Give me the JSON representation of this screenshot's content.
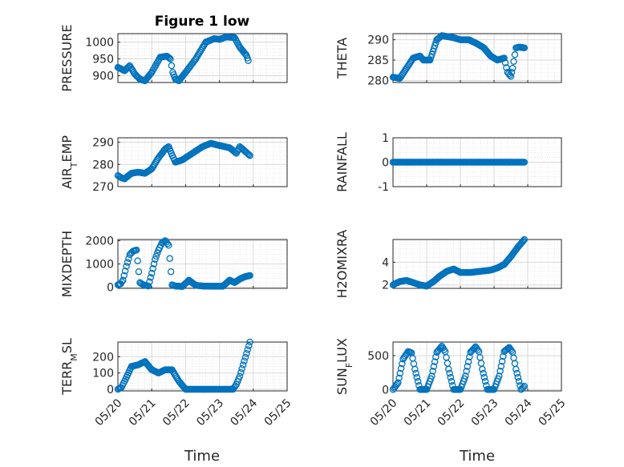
{
  "figure": {
    "title": "Figure 1 low",
    "marker_color": "#0072BD",
    "axis_color": "#262626",
    "grid_color": "#d9d9d9"
  },
  "chart_data": [
    {
      "type": "scatter",
      "ylabel": "PRESSURE",
      "ylim": [
        880,
        1025
      ],
      "yticks": [
        "900",
        "950",
        "1000"
      ],
      "ytick_values": [
        900,
        950,
        1000
      ],
      "xlim": [
        0,
        5
      ],
      "grid": true,
      "x": [
        0,
        0.2,
        0.35,
        0.5,
        0.65,
        0.8,
        1.0,
        1.25,
        1.45,
        1.55,
        1.62,
        1.7,
        1.8,
        2.0,
        2.3,
        2.6,
        2.85,
        3.0,
        3.2,
        3.45,
        3.6,
        3.8,
        3.85
      ],
      "y": [
        925,
        915,
        930,
        905,
        890,
        885,
        910,
        955,
        958,
        950,
        910,
        890,
        885,
        910,
        950,
        1000,
        1010,
        1008,
        1015,
        1013,
        985,
        960,
        945
      ]
    },
    {
      "type": "scatter",
      "ylabel": "THETA",
      "ylim": [
        279.5,
        291.5
      ],
      "yticks": [
        "280",
        "285",
        "290"
      ],
      "ytick_values": [
        280,
        285,
        290
      ],
      "xlim": [
        0,
        5
      ],
      "grid": true,
      "x": [
        0,
        0.2,
        0.4,
        0.6,
        0.8,
        0.9,
        1.1,
        1.3,
        1.45,
        1.6,
        1.8,
        2.0,
        2.25,
        2.5,
        2.7,
        2.9,
        3.1,
        3.3,
        3.4,
        3.5,
        3.55,
        3.65,
        3.75,
        3.9
      ],
      "y": [
        280.8,
        280.5,
        283,
        285.5,
        286,
        285,
        285,
        290,
        291,
        290.8,
        290.5,
        290,
        290,
        289,
        288,
        286,
        285,
        285.5,
        282,
        281,
        283,
        288,
        288.2,
        288
      ]
    },
    {
      "type": "scatter",
      "ylabel": "AIR_TEMP",
      "ylim": [
        270,
        292
      ],
      "yticks": [
        "270",
        "280",
        "290"
      ],
      "ytick_values": [
        270,
        280,
        290
      ],
      "xlim": [
        0,
        5
      ],
      "grid": true,
      "x": [
        0,
        0.1,
        0.2,
        0.4,
        0.6,
        0.8,
        1.0,
        1.2,
        1.4,
        1.5,
        1.55,
        1.7,
        1.9,
        2.2,
        2.5,
        2.75,
        3.0,
        3.3,
        3.5,
        3.6,
        3.75,
        3.9
      ],
      "y": [
        275,
        274,
        273.5,
        276,
        276.5,
        276,
        278,
        283,
        287,
        288,
        286,
        281,
        282,
        285,
        288,
        289.5,
        288.5,
        287.5,
        285,
        288,
        286,
        284
      ]
    },
    {
      "type": "scatter",
      "ylabel": "RAINFALL",
      "ylim": [
        -1,
        1
      ],
      "yticks": [
        "-1",
        "0",
        "1"
      ],
      "ytick_values": [
        -1,
        0,
        1
      ],
      "xlim": [
        0,
        5
      ],
      "grid": true,
      "x": [
        0,
        0.5,
        1.0,
        1.5,
        2.0,
        2.5,
        3.0,
        3.5,
        3.9
      ],
      "y": [
        0,
        0,
        0,
        0,
        0,
        0,
        0,
        0,
        0
      ]
    },
    {
      "type": "scatter",
      "ylabel": "MIXDEPTH",
      "ylim": [
        -50,
        2050
      ],
      "yticks": [
        "0",
        "1000",
        "2000"
      ],
      "ytick_values": [
        0,
        1000,
        2000
      ],
      "xlim": [
        0,
        5
      ],
      "grid": true,
      "x": [
        0,
        0.08,
        0.15,
        0.25,
        0.35,
        0.45,
        0.55,
        0.65,
        0.75,
        0.9,
        1.0,
        1.1,
        1.2,
        1.3,
        1.4,
        1.5,
        1.6,
        1.7,
        1.9,
        2.1,
        2.3,
        2.5,
        2.8,
        3.1,
        3.3,
        3.45,
        3.6,
        3.75,
        3.9
      ],
      "y": [
        100,
        150,
        300,
        900,
        1400,
        1550,
        1600,
        200,
        100,
        50,
        600,
        1200,
        1600,
        1900,
        2000,
        1800,
        100,
        50,
        30,
        300,
        80,
        50,
        40,
        40,
        300,
        200,
        350,
        450,
        500
      ]
    },
    {
      "type": "scatter",
      "ylabel": "H2OMIXRA",
      "ylim": [
        1.7,
        6
      ],
      "yticks": [
        "2",
        "4"
      ],
      "ytick_values": [
        2,
        4
      ],
      "xlim": [
        0,
        5
      ],
      "grid": true,
      "x": [
        0,
        0.2,
        0.4,
        0.6,
        0.8,
        1.0,
        1.2,
        1.4,
        1.6,
        1.8,
        2.0,
        2.3,
        2.6,
        2.9,
        3.1,
        3.3,
        3.5,
        3.7,
        3.9
      ],
      "y": [
        2.0,
        2.3,
        2.4,
        2.2,
        2.0,
        1.9,
        2.3,
        2.8,
        3.2,
        3.4,
        3.1,
        3.1,
        3.2,
        3.3,
        3.5,
        3.8,
        4.5,
        5.3,
        6.0
      ]
    },
    {
      "type": "scatter",
      "ylabel": "TERR_MSL",
      "ylim": [
        -10,
        290
      ],
      "yticks": [
        "0",
        "100",
        "200"
      ],
      "ytick_values": [
        0,
        100,
        200
      ],
      "xlim": [
        0,
        5
      ],
      "grid": true,
      "x": [
        0,
        0.1,
        0.2,
        0.4,
        0.6,
        0.8,
        1.0,
        1.2,
        1.4,
        1.6,
        1.8,
        2.0,
        2.2,
        2.4,
        2.6,
        2.8,
        3.0,
        3.2,
        3.4,
        3.5,
        3.6,
        3.7,
        3.8,
        3.9
      ],
      "y": [
        0,
        10,
        50,
        140,
        150,
        170,
        120,
        100,
        120,
        120,
        50,
        0,
        0,
        0,
        0,
        0,
        0,
        0,
        0,
        30,
        80,
        150,
        220,
        290
      ]
    },
    {
      "type": "scatter",
      "ylabel": "SUN_FLUX",
      "ylim": [
        -20,
        700
      ],
      "yticks": [
        "0",
        "500"
      ],
      "ytick_values": [
        0,
        500
      ],
      "xlim": [
        0,
        5
      ],
      "grid": true,
      "x": [
        0,
        0.15,
        0.3,
        0.45,
        0.55,
        0.65,
        0.8,
        1.0,
        1.15,
        1.3,
        1.45,
        1.55,
        1.65,
        1.8,
        2.0,
        2.15,
        2.3,
        2.45,
        2.55,
        2.65,
        2.8,
        3.0,
        3.15,
        3.3,
        3.45,
        3.55,
        3.65,
        3.8,
        3.9
      ],
      "y": [
        0,
        100,
        450,
        560,
        540,
        300,
        0,
        0,
        200,
        550,
        640,
        560,
        300,
        0,
        0,
        200,
        550,
        630,
        560,
        300,
        0,
        0,
        200,
        560,
        620,
        550,
        300,
        0,
        50
      ]
    }
  ],
  "xaxis": {
    "tick_labels": [
      "05/20",
      "05/21",
      "05/22",
      "05/23",
      "05/24",
      "05/25"
    ],
    "label": "Time"
  }
}
